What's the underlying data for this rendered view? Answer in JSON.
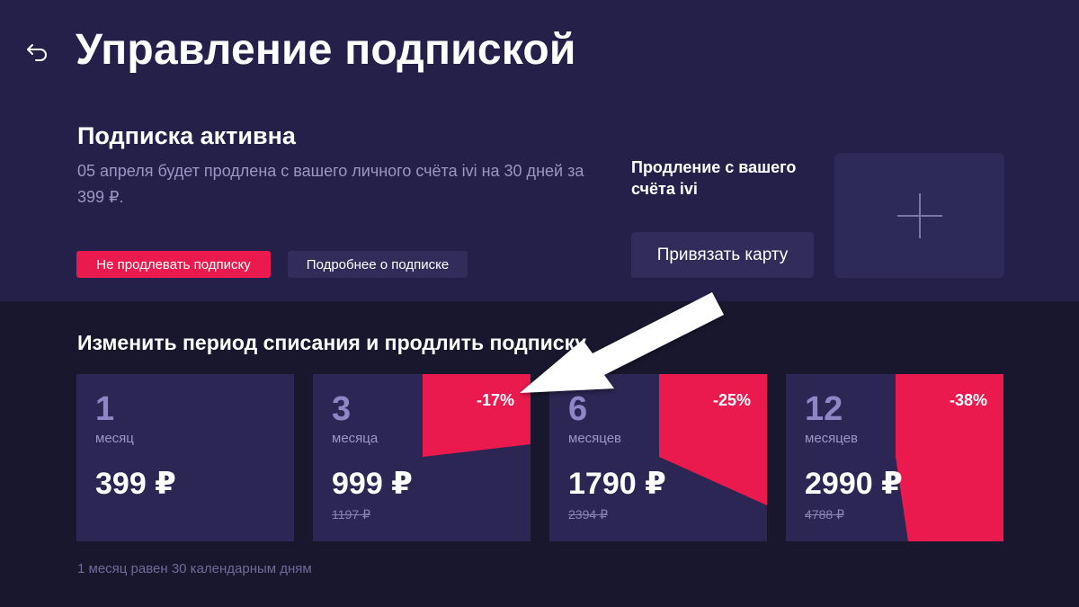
{
  "page": {
    "title": "Управление подпиской",
    "back_icon": "back-arrow-icon"
  },
  "subscription": {
    "status_title": "Подписка активна",
    "description": "05 апреля будет продлена с вашего личного счёта ivi на 30 дней за 399 ₽.",
    "cancel_button": "Не продлевать подписку",
    "details_button": "Подробнее о подписке"
  },
  "payment": {
    "renewal_label": "Продление с вашего счёта ivi",
    "bind_card_button": "Привязать карту",
    "add_card_icon": "plus-icon"
  },
  "plans_section": {
    "heading": "Изменить период списания и продлить подписку",
    "plans": [
      {
        "months": "1",
        "unit": "месяц",
        "price": "399 ₽",
        "old_price": "",
        "discount": ""
      },
      {
        "months": "3",
        "unit": "месяца",
        "price": "999 ₽",
        "old_price": "1197 ₽",
        "discount": "-17%"
      },
      {
        "months": "6",
        "unit": "месяцев",
        "price": "1790 ₽",
        "old_price": "2394 ₽",
        "discount": "-25%"
      },
      {
        "months": "12",
        "unit": "месяцев",
        "price": "2990 ₽",
        "old_price": "4788 ₽",
        "discount": "-38%"
      }
    ],
    "footnote": "1 месяц равен 30 календарным дням"
  },
  "colors": {
    "background_top": "#24204a",
    "background_bottom": "#19172d",
    "accent_red": "#ea1a4e",
    "card_bg": "#2b2654",
    "muted_text": "#9c96c4"
  }
}
